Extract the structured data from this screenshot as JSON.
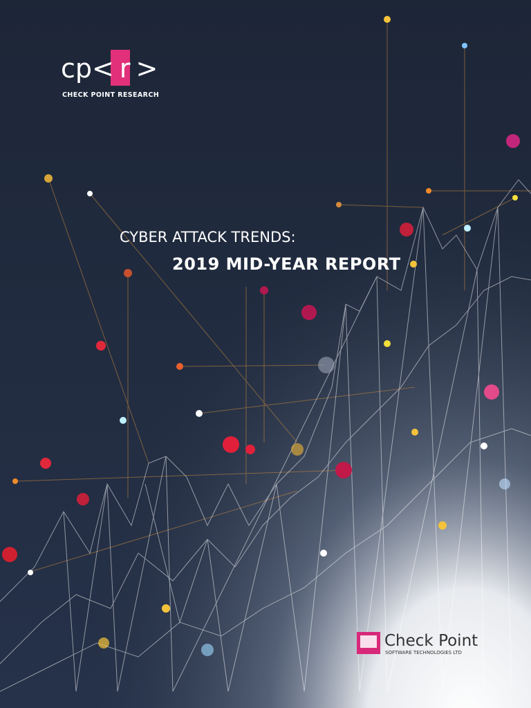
{
  "logo": {
    "mark": [
      "cp<",
      "r",
      ">"
    ],
    "name": "CHECK POINT RESEARCH"
  },
  "cover": {
    "title": "CYBER ATTACK TRENDS:",
    "subtitle": "2019 MID-YEAR REPORT"
  },
  "publisher": {
    "name": "Check Point",
    "tagline": "SOFTWARE TECHNOLOGIES LTD"
  }
}
